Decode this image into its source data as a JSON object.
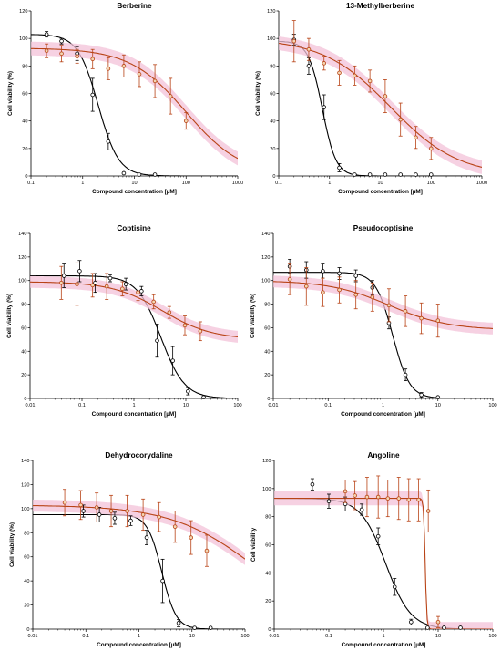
{
  "colors": {
    "black_series": "#000000",
    "red_series": "#b84316",
    "band": "#f3c2d8",
    "red_marker_fill": "#f4d6b2"
  },
  "chart_data": [
    {
      "type": "scatter",
      "title": "Berberine",
      "xlabel": "Compound concentration [µM]",
      "ylabel": "Cell viability (%)",
      "xscale": "log",
      "xlim": [
        0.1,
        1000
      ],
      "ylim": [
        0,
        120
      ],
      "xticks": [
        "0.1",
        "1",
        "10",
        "100",
        "1000"
      ],
      "yticks": [
        "0",
        "20",
        "40",
        "60",
        "80",
        "100",
        "120"
      ],
      "series": [
        {
          "color": "black",
          "x": [
            0.2,
            0.39,
            0.78,
            1.56,
            3.13,
            6.25,
            12.5,
            25
          ],
          "y": [
            103,
            98,
            89,
            59,
            25,
            2,
            1,
            1
          ],
          "err": [
            2,
            2,
            5,
            12,
            6,
            1,
            1,
            1
          ],
          "fit": {
            "top": 103,
            "bottom": 0,
            "ic50": 2.0,
            "hill": 2.2
          }
        },
        {
          "color": "red",
          "x": [
            0.2,
            0.39,
            0.78,
            1.56,
            3.13,
            6.25,
            12.5,
            25,
            50,
            100
          ],
          "y": [
            91,
            89,
            87,
            85,
            78,
            80,
            74,
            69,
            58,
            40
          ],
          "err": [
            5,
            6,
            5,
            7,
            8,
            8,
            9,
            12,
            13,
            6
          ],
          "fit": {
            "top": 93,
            "bottom": 0,
            "ic50": 100,
            "hill": 0.8
          }
        }
      ]
    },
    {
      "type": "scatter",
      "title": "13-Methylberberine",
      "xlabel": "Compound concentration [µM]",
      "ylabel": "Cell viability (%)",
      "xscale": "log",
      "xlim": [
        0.1,
        1000
      ],
      "ylim": [
        0,
        120
      ],
      "xticks": [
        "0.1",
        "1",
        "10",
        "100",
        "1000"
      ],
      "yticks": [
        "0",
        "20",
        "40",
        "60",
        "80",
        "100",
        "120"
      ],
      "series": [
        {
          "color": "black",
          "x": [
            0.2,
            0.39,
            0.78,
            1.56,
            3.13,
            6.25,
            12.5,
            25,
            50,
            100
          ],
          "y": [
            99,
            80,
            50,
            6,
            1,
            1,
            1,
            1,
            1,
            1
          ],
          "err": [
            4,
            6,
            9,
            3,
            1,
            1,
            1,
            1,
            1,
            1
          ],
          "fit": {
            "top": 98,
            "bottom": 0,
            "ic50": 0.72,
            "hill": 3.2
          }
        },
        {
          "color": "red",
          "x": [
            0.2,
            0.39,
            0.78,
            1.56,
            3.13,
            6.25,
            12.5,
            25,
            50,
            100
          ],
          "y": [
            98,
            92,
            82,
            75,
            73,
            69,
            58,
            41,
            28,
            20
          ],
          "err": [
            15,
            8,
            5,
            9,
            7,
            8,
            12,
            12,
            8,
            8
          ],
          "fit": {
            "top": 100,
            "bottom": 0,
            "ic50": 16,
            "hill": 0.65
          }
        }
      ]
    },
    {
      "type": "scatter",
      "title": "Coptisine",
      "xlabel": "Compound concentration [µM]",
      "ylabel": "Cell viability (%)",
      "xscale": "log",
      "xlim": [
        0.01,
        100
      ],
      "ylim": [
        0,
        140
      ],
      "xticks": [
        "0.01",
        "0.1",
        "1",
        "10",
        "100"
      ],
      "yticks": [
        "0",
        "20",
        "40",
        "60",
        "80",
        "100",
        "120",
        "140"
      ],
      "series": [
        {
          "color": "black",
          "x": [
            0.045,
            0.09,
            0.18,
            0.35,
            0.7,
            1.4,
            2.8,
            5.6,
            11,
            22
          ],
          "y": [
            104,
            108,
            98,
            102,
            97,
            91,
            49,
            32,
            6,
            1
          ],
          "err": [
            10,
            9,
            8,
            3,
            5,
            4,
            14,
            12,
            3,
            1
          ],
          "fit": {
            "top": 104,
            "bottom": 0,
            "ic50": 3.3,
            "hill": 1.9
          }
        },
        {
          "color": "red",
          "x": [
            0.04,
            0.08,
            0.16,
            0.3,
            0.6,
            1.2,
            2.4,
            4.8,
            9.6,
            19
          ],
          "y": [
            98,
            97,
            96,
            95,
            93,
            90,
            82,
            73,
            62,
            57
          ],
          "err": [
            14,
            18,
            10,
            11,
            6,
            7,
            6,
            5,
            8,
            8
          ],
          "fit": {
            "top": 99,
            "bottom": 50,
            "ic50": 3.5,
            "hill": 0.9
          }
        }
      ]
    },
    {
      "type": "scatter",
      "title": "Pseudocoptisine",
      "xlabel": "Compound concentration [µM]",
      "ylabel": "Cell viability (%)",
      "xscale": "log",
      "xlim": [
        0.01,
        100
      ],
      "ylim": [
        0,
        140
      ],
      "xticks": [
        "0.01",
        "0.1",
        "1",
        "10",
        "100"
      ],
      "yticks": [
        "0",
        "20",
        "40",
        "60",
        "80",
        "100",
        "120",
        "140"
      ],
      "series": [
        {
          "color": "black",
          "x": [
            0.02,
            0.04,
            0.08,
            0.16,
            0.32,
            0.64,
            1.28,
            2.56,
            5,
            10
          ],
          "y": [
            112,
            109,
            108,
            106,
            104,
            94,
            64,
            20,
            3,
            1
          ],
          "err": [
            6,
            7,
            6,
            5,
            5,
            6,
            5,
            5,
            2,
            1
          ],
          "fit": {
            "top": 107,
            "bottom": 0,
            "ic50": 1.5,
            "hill": 2.8
          }
        },
        {
          "color": "red",
          "x": [
            0.02,
            0.04,
            0.08,
            0.16,
            0.32,
            0.64,
            1.28,
            2.56,
            5,
            10
          ],
          "y": [
            101,
            95,
            90,
            92,
            88,
            86,
            79,
            74,
            68,
            66
          ],
          "err": [
            13,
            16,
            12,
            11,
            12,
            12,
            14,
            13,
            13,
            14
          ],
          "fit": {
            "top": 100,
            "bottom": 58,
            "ic50": 1.3,
            "hill": 0.8
          }
        }
      ]
    },
    {
      "type": "scatter",
      "title": "Dehydrocorydaline",
      "xlabel": "Compound concentration [µM]",
      "ylabel": "Cell viability (%)",
      "xscale": "log",
      "xlim": [
        0.01,
        100
      ],
      "ylim": [
        0,
        140
      ],
      "xticks": [
        "0.01",
        "0.1",
        "1",
        "10",
        "100"
      ],
      "yticks": [
        "0",
        "20",
        "40",
        "60",
        "80",
        "100",
        "120",
        "140"
      ],
      "series": [
        {
          "color": "black",
          "x": [
            0.09,
            0.18,
            0.35,
            0.7,
            1.4,
            2.8,
            5.6,
            11.2,
            22.4
          ],
          "y": [
            98,
            95,
            92,
            90,
            76,
            40,
            5,
            1,
            1
          ],
          "err": [
            5,
            6,
            5,
            4,
            6,
            18,
            3,
            1,
            1
          ],
          "fit": {
            "top": 95,
            "bottom": 0,
            "ic50": 2.7,
            "hill": 3.2
          }
        },
        {
          "color": "red",
          "x": [
            0.04,
            0.08,
            0.16,
            0.3,
            0.6,
            1.2,
            2.4,
            4.8,
            9.6,
            19
          ],
          "y": [
            105,
            103,
            101,
            98,
            98,
            95,
            93,
            85,
            76,
            65
          ],
          "err": [
            11,
            12,
            12,
            13,
            13,
            13,
            12,
            13,
            14,
            13
          ],
          "fit": {
            "top": 103,
            "bottom": 0,
            "ic50": 160,
            "hill": 0.55
          }
        }
      ]
    },
    {
      "type": "scatter",
      "title": "Angoline",
      "xlabel": "Compound concentration [µM]",
      "ylabel": "Cell viability",
      "xscale": "log",
      "xlim": [
        0.01,
        100
      ],
      "ylim": [
        0,
        120
      ],
      "xticks": [
        "0.01",
        "0.1",
        "1",
        "10",
        "100"
      ],
      "yticks": [
        "0",
        "20",
        "40",
        "60",
        "80",
        "100",
        "120"
      ],
      "series": [
        {
          "color": "black",
          "x": [
            0.05,
            0.1,
            0.2,
            0.4,
            0.8,
            1.6,
            3.2,
            6.4,
            12.8,
            25.6
          ],
          "y": [
            103,
            91,
            89,
            85,
            66,
            30,
            5,
            1,
            1,
            1
          ],
          "err": [
            4,
            5,
            5,
            4,
            6,
            6,
            2,
            1,
            1,
            1
          ],
          "fit": {
            "top": 93,
            "bottom": 0,
            "ic50": 1.1,
            "hill": 1.9
          }
        },
        {
          "color": "red",
          "x": [
            0.2,
            0.3,
            0.5,
            0.8,
            1.2,
            1.9,
            2.9,
            4.4,
            6.6,
            10
          ],
          "y": [
            98,
            95,
            94,
            94,
            93,
            93,
            92,
            92,
            84,
            5
          ],
          "err": [
            8,
            10,
            14,
            15,
            13,
            15,
            15,
            15,
            15,
            4
          ],
          "fit": {
            "top": 93,
            "bottom": 0,
            "ic50": 5.8,
            "hill": 30
          }
        }
      ]
    }
  ]
}
